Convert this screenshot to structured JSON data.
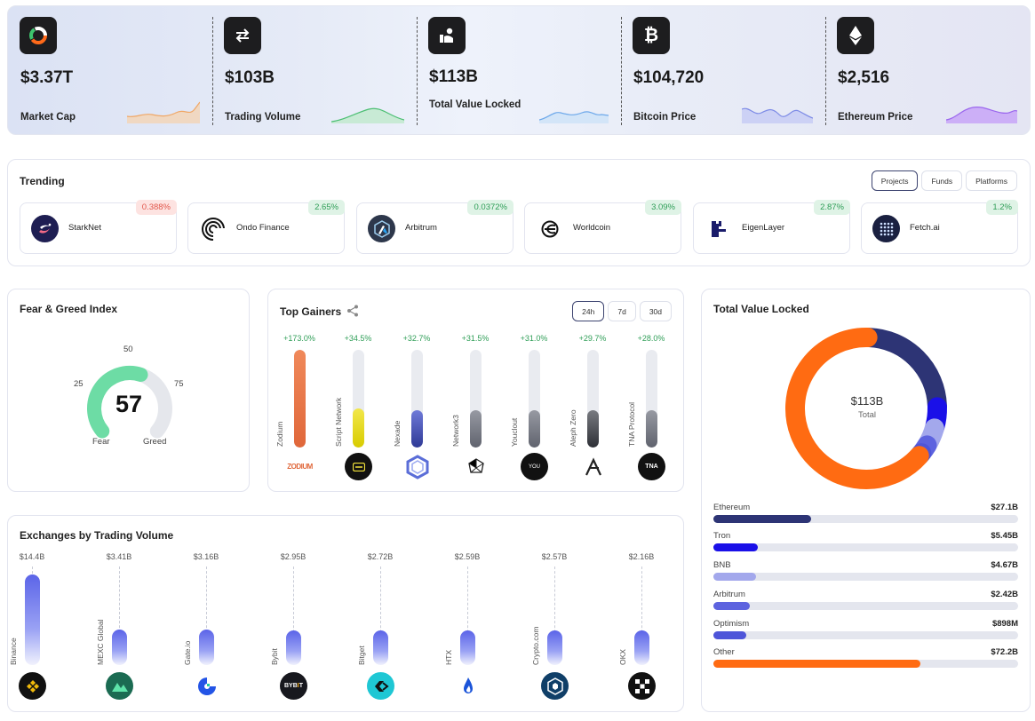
{
  "stats": [
    {
      "value": "$3.37T",
      "label": "Market Cap",
      "icon": "market-cap-icon",
      "color": "#f0b07a"
    },
    {
      "value": "$103B",
      "label": "Trading Volume",
      "icon": "swap-arrows-icon",
      "color": "#52c27a"
    },
    {
      "value": "$113B",
      "label": "Total Value Locked",
      "icon": "locked-value-icon",
      "color": "#6da8ea"
    },
    {
      "value": "$104,720",
      "label": "Bitcoin Price",
      "icon": "bitcoin-icon",
      "color": "#7c8ae6"
    },
    {
      "value": "$2,516",
      "label": "Ethereum Price",
      "icon": "ethereum-icon",
      "color": "#9b67ee"
    }
  ],
  "trending": {
    "title": "Trending",
    "tabs": [
      "Projects",
      "Funds",
      "Platforms"
    ],
    "items": [
      {
        "name": "StarkNet",
        "pct": "0.388%",
        "dir": "dn",
        "icon": "starknet-icon"
      },
      {
        "name": "Ondo Finance",
        "pct": "2.65%",
        "dir": "up",
        "icon": "ondo-icon"
      },
      {
        "name": "Arbitrum",
        "pct": "0.0372%",
        "dir": "up",
        "icon": "arbitrum-icon"
      },
      {
        "name": "Worldcoin",
        "pct": "3.09%",
        "dir": "up",
        "icon": "worldcoin-icon"
      },
      {
        "name": "EigenLayer",
        "pct": "2.87%",
        "dir": "up",
        "icon": "eigenlayer-icon"
      },
      {
        "name": "Fetch.ai",
        "pct": "1.2%",
        "dir": "up",
        "icon": "fetchai-icon"
      }
    ]
  },
  "fear": {
    "title": "Fear & Greed Index",
    "value": "57",
    "value_num": 57,
    "t25": "25",
    "t50": "50",
    "t75": "75",
    "fear": "Fear",
    "greed": "Greed"
  },
  "gainers": {
    "title": "Top Gainers",
    "periods": [
      "24h",
      "7d",
      "30d"
    ],
    "items": [
      {
        "name": "Zodium",
        "pct": "+173.0%",
        "level": 1.0,
        "color": "#e0673a",
        "icon": "zodium-icon"
      },
      {
        "name": "Script Network",
        "pct": "+34.5%",
        "level": 0.4,
        "color": "#e8dc10",
        "icon": "script-network-icon"
      },
      {
        "name": "Nexade",
        "pct": "+32.7%",
        "level": 0.38,
        "color": "#3f49a8",
        "icon": "nexade-icon"
      },
      {
        "name": "Network3",
        "pct": "+31.5%",
        "level": 0.38,
        "color": "#60636e",
        "icon": "network3-icon"
      },
      {
        "name": "Youclout",
        "pct": "+31.0%",
        "level": 0.38,
        "color": "#60636e",
        "icon": "youclout-icon"
      },
      {
        "name": "Aleph Zero",
        "pct": "+29.7%",
        "level": 0.38,
        "color": "#2e3036",
        "icon": "aleph-zero-icon"
      },
      {
        "name": "TNA Protocol",
        "pct": "+28.0%",
        "level": 0.38,
        "color": "#60636e",
        "icon": "tna-protocol-icon"
      }
    ]
  },
  "exchanges": {
    "title": "Exchanges by Trading Volume",
    "items": [
      {
        "name": "Binance",
        "value": "$14.4B",
        "volume": 14.4,
        "icon": "binance-icon"
      },
      {
        "name": "MEXC Global",
        "value": "$3.41B",
        "volume": 3.41,
        "icon": "mexc-icon"
      },
      {
        "name": "Gate.io",
        "value": "$3.16B",
        "volume": 3.16,
        "icon": "gateio-icon"
      },
      {
        "name": "Bybit",
        "value": "$2.95B",
        "volume": 2.95,
        "icon": "bybit-icon"
      },
      {
        "name": "Bitget",
        "value": "$2.72B",
        "volume": 2.72,
        "icon": "bitget-icon"
      },
      {
        "name": "HTX",
        "value": "$2.59B",
        "volume": 2.59,
        "icon": "htx-icon"
      },
      {
        "name": "Crypto.com",
        "value": "$2.57B",
        "volume": 2.57,
        "icon": "cryptocom-icon"
      },
      {
        "name": "OKX",
        "value": "$2.16B",
        "volume": 2.16,
        "icon": "okx-icon"
      }
    ]
  },
  "tvl": {
    "title": "Total Value Locked",
    "center_value": "$113B",
    "center_label": "Total",
    "items": [
      {
        "name": "Ethereum",
        "value": "$27.1B",
        "amount": 27.1,
        "color": "#2d3475"
      },
      {
        "name": "Tron",
        "value": "$5.45B",
        "amount": 5.45,
        "color": "#1a10e8"
      },
      {
        "name": "BNB",
        "value": "$4.67B",
        "amount": 4.67,
        "color": "#a3a8ec"
      },
      {
        "name": "Arbitrum",
        "value": "$2.42B",
        "amount": 2.42,
        "color": "#5d63df"
      },
      {
        "name": "Optimism",
        "value": "$898M",
        "amount": 0.898,
        "color": "#4e55d9"
      },
      {
        "name": "Other",
        "value": "$72.2B",
        "amount": 72.2,
        "color": "#ff6b12"
      }
    ]
  }
}
